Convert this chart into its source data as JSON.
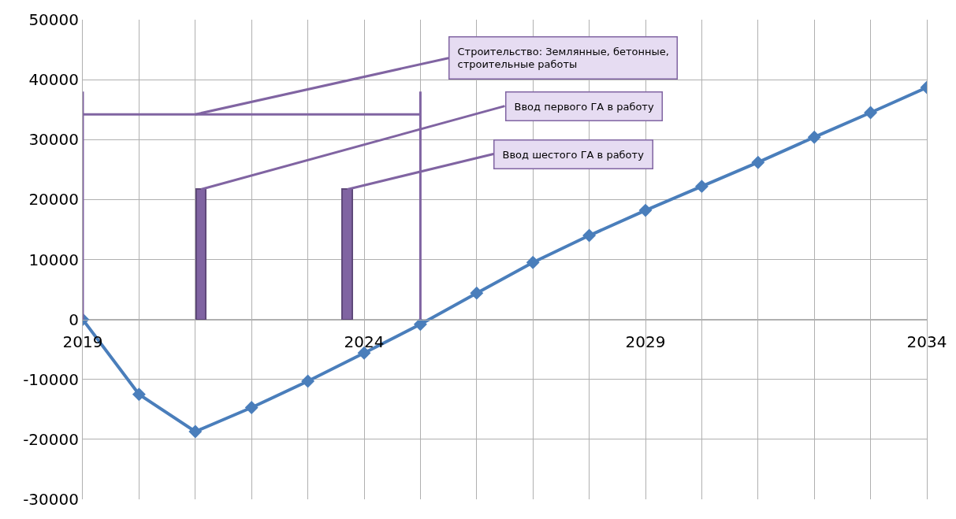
{
  "chart_data": {
    "type": "line",
    "x": [
      2019,
      2020,
      2021,
      2022,
      2023,
      2024,
      2025,
      2026,
      2027,
      2028,
      2029,
      2030,
      2031,
      2032,
      2033,
      2034
    ],
    "series": [
      {
        "color": "#4a7ebb",
        "values": [
          0,
          -12500,
          -18700,
          -14700,
          -10300,
          -5600,
          -800,
          4400,
          9500,
          14000,
          18200,
          22200,
          26200,
          30400,
          34500,
          38700
        ]
      },
      {
        "type": "bar",
        "color": "#8064a2",
        "x": [
          2021.1,
          2023.7
        ],
        "values": [
          21700,
          21700
        ]
      },
      {
        "type": "line",
        "marker": "none",
        "color": "#8064a2",
        "x": [
          2019,
          2025
        ],
        "values": [
          34200,
          34200
        ]
      }
    ],
    "xlim": [
      2019,
      2034
    ],
    "xticks": [
      2019,
      {
        "value": 2020,
        "label": null
      },
      {
        "value": 2021,
        "label": null
      },
      {
        "value": 2022,
        "label": null
      },
      {
        "value": 2023,
        "label": null
      },
      2024,
      {
        "value": 2025,
        "label": null
      },
      {
        "value": 2026,
        "label": null
      },
      {
        "value": 2027,
        "label": null
      },
      {
        "value": 2028,
        "label": null
      },
      2029,
      {
        "value": 2030,
        "label": null
      },
      {
        "value": 2031,
        "label": null
      },
      {
        "value": 2032,
        "label": null
      },
      {
        "value": 2033,
        "label": null
      },
      2034
    ],
    "ylim": [
      -30000,
      50000
    ],
    "yticks": [
      -30000,
      -20000,
      -10000,
      0,
      10000,
      20000,
      30000,
      40000,
      50000
    ],
    "grid": true,
    "marker": "diamond",
    "line_style": "solid",
    "ref_lines": [
      {
        "axis": "x",
        "value": 2019,
        "color": "#8064a2"
      },
      {
        "axis": "x",
        "value": 2025,
        "color": "#8064a2"
      }
    ],
    "annotations": [
      {
        "text": "Строительство: Землянные, бетонные, строительные работы",
        "x": 2021,
        "y": 34200
      },
      {
        "text": "Ввод первого ГА в работу",
        "x": 2021.1,
        "y": 21700
      },
      {
        "text": "Ввод шестого ГА в работу",
        "x": 2023.7,
        "y": 21700
      }
    ]
  }
}
